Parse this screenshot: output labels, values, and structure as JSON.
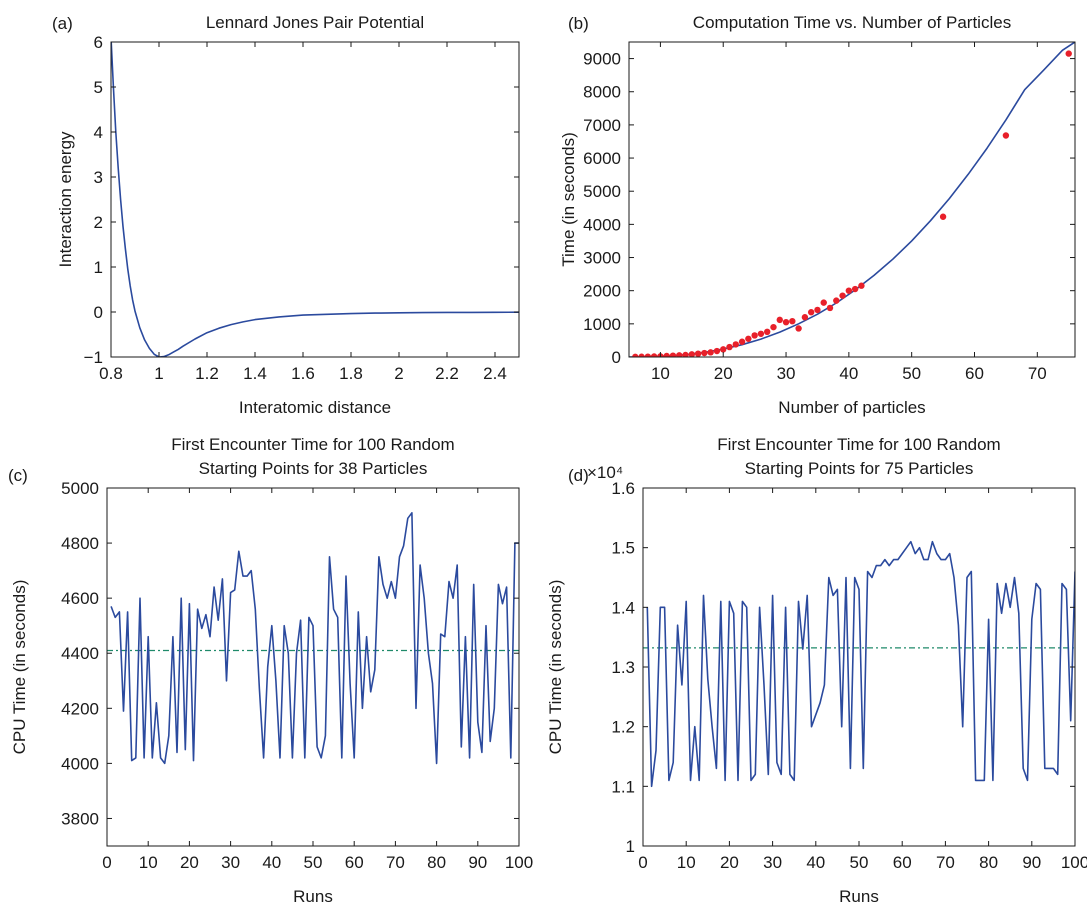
{
  "chart_data": [
    {
      "panel_label": "(a)",
      "type": "line",
      "title": [
        "Lennard Jones Pair Potential"
      ],
      "xlabel": "Interatomic distance",
      "ylabel": "Interaction energy",
      "xlim": [
        0.8,
        2.5
      ],
      "ylim": [
        -1,
        6
      ],
      "xticks": [
        0.8,
        1,
        1.2,
        1.4,
        1.6,
        1.8,
        2,
        2.2,
        2.4
      ],
      "xtick_labels": [
        "0.8",
        "1",
        "1.2",
        "1.4",
        "1.6",
        "1.8",
        "2",
        "2.2",
        "2.4"
      ],
      "yticks": [
        -1,
        0,
        1,
        2,
        3,
        4,
        5,
        6
      ],
      "ytick_labels": [
        "−1",
        "0",
        "1",
        "2",
        "3",
        "4",
        "5",
        "6"
      ],
      "exponent_label": "",
      "grid": false,
      "series": [
        {
          "kind": "line",
          "color": "#2b4a9e",
          "x": [
            0.8,
            0.81,
            0.82,
            0.83,
            0.84,
            0.85,
            0.86,
            0.87,
            0.88,
            0.89,
            0.9,
            0.92,
            0.94,
            0.96,
            0.98,
            1.0,
            1.02,
            1.04,
            1.06,
            1.08,
            1.1,
            1.15,
            1.2,
            1.25,
            1.3,
            1.35,
            1.4,
            1.5,
            1.6,
            1.7,
            1.8,
            1.9,
            2.0,
            2.1,
            2.2,
            2.3,
            2.4,
            2.5
          ],
          "y": [
            6.1,
            5.0,
            4.0,
            3.2,
            2.5,
            1.9,
            1.4,
            0.95,
            0.58,
            0.27,
            0.02,
            -0.35,
            -0.62,
            -0.81,
            -0.94,
            -1.0,
            -0.99,
            -0.95,
            -0.89,
            -0.83,
            -0.76,
            -0.6,
            -0.46,
            -0.36,
            -0.28,
            -0.22,
            -0.17,
            -0.11,
            -0.07,
            -0.05,
            -0.035,
            -0.025,
            -0.018,
            -0.014,
            -0.01,
            -0.008,
            -0.006,
            -0.005
          ]
        }
      ]
    },
    {
      "panel_label": "(b)",
      "type": "scatter",
      "title": [
        "Computation Time vs. Number of Particles"
      ],
      "xlabel": "Number of particles",
      "ylabel": "Time (in seconds)",
      "xlim": [
        5,
        76
      ],
      "ylim": [
        0,
        9500
      ],
      "xticks": [
        10,
        20,
        30,
        40,
        50,
        60,
        70
      ],
      "xtick_labels": [
        "10",
        "20",
        "30",
        "40",
        "50",
        "60",
        "70"
      ],
      "yticks": [
        0,
        1000,
        2000,
        3000,
        4000,
        5000,
        6000,
        7000,
        8000,
        9000
      ],
      "ytick_labels": [
        "0",
        "1000",
        "2000",
        "3000",
        "4000",
        "5000",
        "6000",
        "7000",
        "8000",
        "9000"
      ],
      "exponent_label": "",
      "grid": false,
      "series": [
        {
          "kind": "line",
          "color": "#2b4a9e",
          "x": [
            5,
            8,
            11,
            14,
            17,
            20,
            23,
            26,
            29,
            32,
            35,
            38,
            41,
            44,
            47,
            50,
            53,
            56,
            59,
            62,
            65,
            68,
            71,
            74,
            76
          ],
          "y": [
            0,
            5,
            30,
            70,
            140,
            240,
            370,
            540,
            750,
            1000,
            1290,
            1630,
            2020,
            2460,
            2950,
            3500,
            4110,
            4780,
            5510,
            6300,
            7150,
            8060,
            8650,
            9250,
            9500
          ]
        },
        {
          "kind": "scatter",
          "color": "#e8202a",
          "x": [
            6,
            7,
            8,
            9,
            10,
            11,
            12,
            13,
            14,
            15,
            16,
            17,
            18,
            19,
            20,
            21,
            22,
            23,
            24,
            25,
            26,
            27,
            28,
            29,
            30,
            31,
            32,
            33,
            34,
            35,
            36,
            37,
            38,
            39,
            40,
            41,
            42,
            55,
            65,
            75
          ],
          "y": [
            5,
            8,
            10,
            15,
            20,
            30,
            40,
            50,
            60,
            80,
            100,
            120,
            140,
            180,
            230,
            300,
            380,
            460,
            550,
            650,
            700,
            760,
            900,
            1120,
            1050,
            1080,
            860,
            1200,
            1350,
            1420,
            1640,
            1480,
            1700,
            1850,
            2000,
            2050,
            2150,
            4230,
            6680,
            9150
          ]
        }
      ]
    },
    {
      "panel_label": "(c)",
      "type": "line",
      "title": [
        "First Encounter Time for 100 Random",
        "Starting Points for 38 Particles"
      ],
      "xlabel": "Runs",
      "ylabel": "CPU Time (in seconds)",
      "xlim": [
        0,
        100
      ],
      "ylim": [
        3700,
        5000
      ],
      "xticks": [
        0,
        10,
        20,
        30,
        40,
        50,
        60,
        70,
        80,
        90,
        100
      ],
      "xtick_labels": [
        "0",
        "10",
        "20",
        "30",
        "40",
        "50",
        "60",
        "70",
        "80",
        "90",
        "100"
      ],
      "yticks": [
        3800,
        4000,
        4200,
        4400,
        4600,
        4800,
        5000
      ],
      "ytick_labels": [
        "3800",
        "4000",
        "4200",
        "4400",
        "4600",
        "4800",
        "5000"
      ],
      "exponent_label": "",
      "grid": false,
      "mean_line": 4410,
      "mean_color": "#1f8a6a",
      "series": [
        {
          "kind": "line",
          "color": "#2b4a9e",
          "x": [
            1,
            2,
            3,
            4,
            5,
            6,
            7,
            8,
            9,
            10,
            11,
            12,
            13,
            14,
            15,
            16,
            17,
            18,
            19,
            20,
            21,
            22,
            23,
            24,
            25,
            26,
            27,
            28,
            29,
            30,
            31,
            32,
            33,
            34,
            35,
            36,
            37,
            38,
            39,
            40,
            41,
            42,
            43,
            44,
            45,
            46,
            47,
            48,
            49,
            50,
            51,
            52,
            53,
            54,
            55,
            56,
            57,
            58,
            59,
            60,
            61,
            62,
            63,
            64,
            65,
            66,
            67,
            68,
            69,
            70,
            71,
            72,
            73,
            74,
            75,
            76,
            77,
            78,
            79,
            80,
            81,
            82,
            83,
            84,
            85,
            86,
            87,
            88,
            89,
            90,
            91,
            92,
            93,
            94,
            95,
            96,
            97,
            98,
            99,
            100
          ],
          "y": [
            4570,
            4530,
            4550,
            4190,
            4550,
            4010,
            4020,
            4600,
            4020,
            4460,
            4020,
            4220,
            4020,
            4000,
            4100,
            4460,
            4040,
            4600,
            4050,
            4580,
            4010,
            4560,
            4490,
            4540,
            4460,
            4640,
            4520,
            4670,
            4300,
            4620,
            4630,
            4770,
            4680,
            4680,
            4700,
            4560,
            4270,
            4020,
            4350,
            4500,
            4300,
            4020,
            4500,
            4400,
            4020,
            4400,
            4520,
            4020,
            4530,
            4500,
            4060,
            4020,
            4100,
            4750,
            4560,
            4530,
            4020,
            4680,
            4290,
            4020,
            4550,
            4200,
            4460,
            4260,
            4340,
            4750,
            4650,
            4600,
            4660,
            4600,
            4750,
            4790,
            4890,
            4910,
            4200,
            4720,
            4600,
            4400,
            4290,
            4000,
            4470,
            4460,
            4660,
            4600,
            4720,
            4060,
            4460,
            4020,
            4650,
            4150,
            4040,
            4500,
            4080,
            4200,
            4650,
            4580,
            4640,
            4020,
            4800,
            4800
          ]
        }
      ]
    },
    {
      "panel_label": "(d)",
      "type": "line",
      "title": [
        "First Encounter Time for 100 Random",
        "Starting Points for 75 Particles"
      ],
      "xlabel": "Runs",
      "ylabel": "CPU Time (in seconds)",
      "xlim": [
        0,
        100
      ],
      "ylim": [
        1,
        1.6
      ],
      "xticks": [
        0,
        10,
        20,
        30,
        40,
        50,
        60,
        70,
        80,
        90,
        100
      ],
      "xtick_labels": [
        "0",
        "10",
        "20",
        "30",
        "40",
        "50",
        "60",
        "70",
        "80",
        "90",
        "100"
      ],
      "yticks": [
        1,
        1.1,
        1.2,
        1.3,
        1.4,
        1.5,
        1.6
      ],
      "ytick_labels": [
        "1",
        "1.1",
        "1.2",
        "1.3",
        "1.4",
        "1.5",
        "1.6"
      ],
      "exponent_label": "×10⁴",
      "grid": false,
      "mean_line": 1.332,
      "mean_color": "#1f8a6a",
      "series": [
        {
          "kind": "line",
          "color": "#2b4a9e",
          "x": [
            1,
            2,
            3,
            4,
            5,
            6,
            7,
            8,
            9,
            10,
            11,
            12,
            13,
            14,
            15,
            16,
            17,
            18,
            19,
            20,
            21,
            22,
            23,
            24,
            25,
            26,
            27,
            28,
            29,
            30,
            31,
            32,
            33,
            34,
            35,
            36,
            37,
            38,
            39,
            40,
            41,
            42,
            43,
            44,
            45,
            46,
            47,
            48,
            49,
            50,
            51,
            52,
            53,
            54,
            55,
            56,
            57,
            58,
            59,
            60,
            61,
            62,
            63,
            64,
            65,
            66,
            67,
            68,
            69,
            70,
            71,
            72,
            73,
            74,
            75,
            76,
            77,
            78,
            79,
            80,
            81,
            82,
            83,
            84,
            85,
            86,
            87,
            88,
            89,
            90,
            91,
            92,
            93,
            94,
            95,
            96,
            97,
            98,
            99,
            100
          ],
          "y": [
            1.4,
            1.1,
            1.16,
            1.4,
            1.4,
            1.11,
            1.14,
            1.37,
            1.27,
            1.41,
            1.11,
            1.2,
            1.11,
            1.42,
            1.28,
            1.2,
            1.13,
            1.41,
            1.11,
            1.41,
            1.39,
            1.11,
            1.41,
            1.4,
            1.11,
            1.12,
            1.4,
            1.27,
            1.12,
            1.42,
            1.14,
            1.12,
            1.4,
            1.12,
            1.11,
            1.41,
            1.33,
            1.42,
            1.2,
            1.22,
            1.24,
            1.27,
            1.45,
            1.42,
            1.43,
            1.2,
            1.45,
            1.13,
            1.45,
            1.43,
            1.13,
            1.46,
            1.45,
            1.47,
            1.47,
            1.48,
            1.47,
            1.48,
            1.48,
            1.49,
            1.5,
            1.51,
            1.49,
            1.5,
            1.48,
            1.48,
            1.51,
            1.49,
            1.48,
            1.48,
            1.49,
            1.45,
            1.37,
            1.2,
            1.45,
            1.46,
            1.11,
            1.11,
            1.11,
            1.38,
            1.11,
            1.44,
            1.39,
            1.44,
            1.4,
            1.45,
            1.39,
            1.13,
            1.11,
            1.38,
            1.44,
            1.43,
            1.13,
            1.13,
            1.13,
            1.12,
            1.44,
            1.43,
            1.21,
            1.46
          ]
        }
      ]
    }
  ]
}
